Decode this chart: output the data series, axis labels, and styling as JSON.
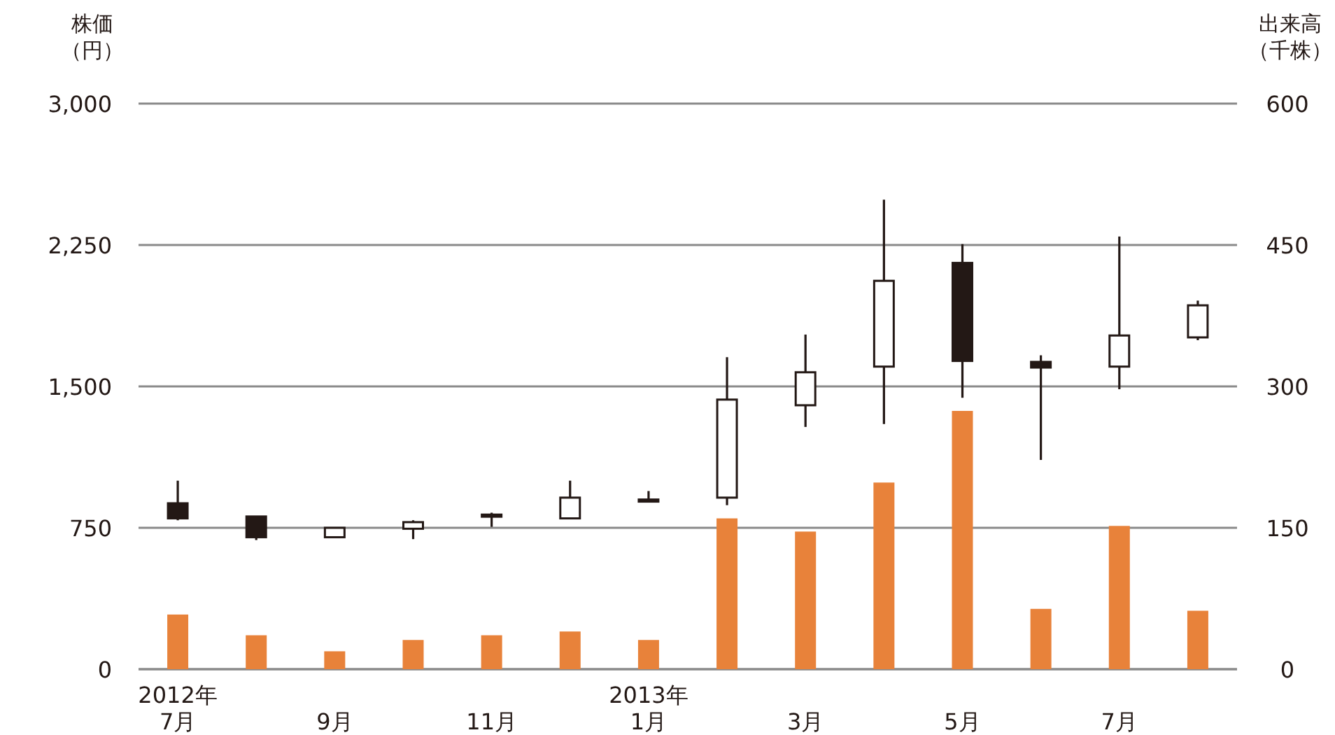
{
  "chart_data": {
    "type": "candlestick",
    "ylabel": "株価（円）",
    "y2label": "出来高（千株）",
    "categories": [
      "2012年\n7月",
      null,
      "9月",
      null,
      "11月",
      null,
      "2013年\n1月",
      null,
      "3月",
      null,
      "5月",
      null,
      "7月",
      null
    ],
    "ohlc": [
      [
        880,
        1000,
        790,
        800
      ],
      [
        810,
        810,
        685,
        700
      ],
      [
        700,
        750,
        700,
        750
      ],
      [
        745,
        790,
        690,
        780
      ],
      [
        810,
        830,
        755,
        820
      ],
      [
        800,
        1000,
        795,
        910
      ],
      [
        890,
        945,
        890,
        900
      ],
      [
        910,
        1655,
        870,
        1430
      ],
      [
        1400,
        1775,
        1285,
        1575
      ],
      [
        1605,
        2490,
        1300,
        2060
      ],
      [
        2155,
        2255,
        1440,
        1635
      ],
      [
        1630,
        1665,
        1110,
        1600
      ],
      [
        1605,
        2295,
        1485,
        1770
      ],
      [
        1760,
        1955,
        1745,
        1930
      ]
    ],
    "series": [
      {
        "type": "bar",
        "axis": "y2",
        "color": "#e8823a",
        "values": [
          58,
          36,
          19,
          31,
          36,
          40,
          31,
          160,
          146,
          198,
          274,
          64,
          152,
          62
        ]
      }
    ],
    "ylim": [
      0,
      3000
    ],
    "yticks": [
      {
        "value": 0,
        "label": "0"
      },
      {
        "value": 750,
        "label": "750"
      },
      {
        "value": 1500,
        "label": "1,500"
      },
      {
        "value": 2250,
        "label": "2,250"
      },
      {
        "value": 3000,
        "label": "3,000"
      }
    ],
    "y2lim": [
      0,
      600
    ],
    "y2ticks": [
      0,
      150,
      300,
      450,
      600
    ],
    "grid": true
  }
}
